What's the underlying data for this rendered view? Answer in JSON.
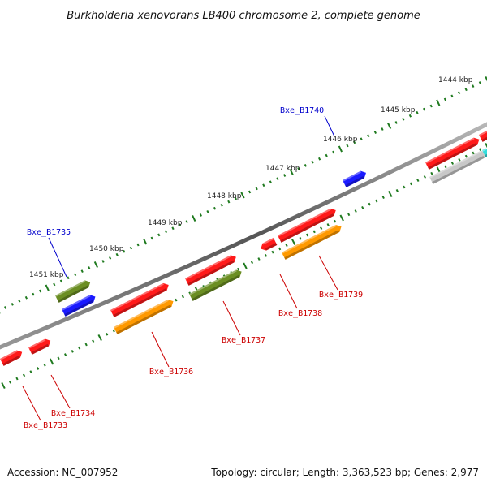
{
  "title": "Burkholderia xenovorans LB400 chromosome 2, complete genome",
  "footer": {
    "accession": "Accession: NC_007952",
    "summary": "Topology: circular; Length: 3,363,523 bp; Genes: 2,977"
  },
  "ruler": {
    "labels": [
      "1444 kbp",
      "1445 kbp",
      "1446 kbp",
      "1447 kbp",
      "1448 kbp",
      "1449 kbp",
      "1450 kbp",
      "1451 kbp"
    ]
  },
  "gene_labels": {
    "plus": [
      {
        "text": "Bxe_B1740",
        "color": "#0000cc"
      },
      {
        "text": "Bxe_B1735",
        "color": "#0000cc"
      }
    ],
    "minus": [
      {
        "text": "Bxe_B1739",
        "color": "#cc0000"
      },
      {
        "text": "Bxe_B1738",
        "color": "#cc0000"
      },
      {
        "text": "Bxe_B1737",
        "color": "#cc0000"
      },
      {
        "text": "Bxe_B1736",
        "color": "#cc0000"
      },
      {
        "text": "Bxe_B1734",
        "color": "#cc0000"
      },
      {
        "text": "Bxe_B1733",
        "color": "#cc0000"
      }
    ]
  },
  "feature_colors": {
    "blue": "#1a1aff",
    "olive": "#6b8e23",
    "red": "#ff1a1a",
    "orange": "#ff9900",
    "gray": "#c8c8c8",
    "cyan": "#33dddd",
    "ticks": "#1f7a1f"
  }
}
